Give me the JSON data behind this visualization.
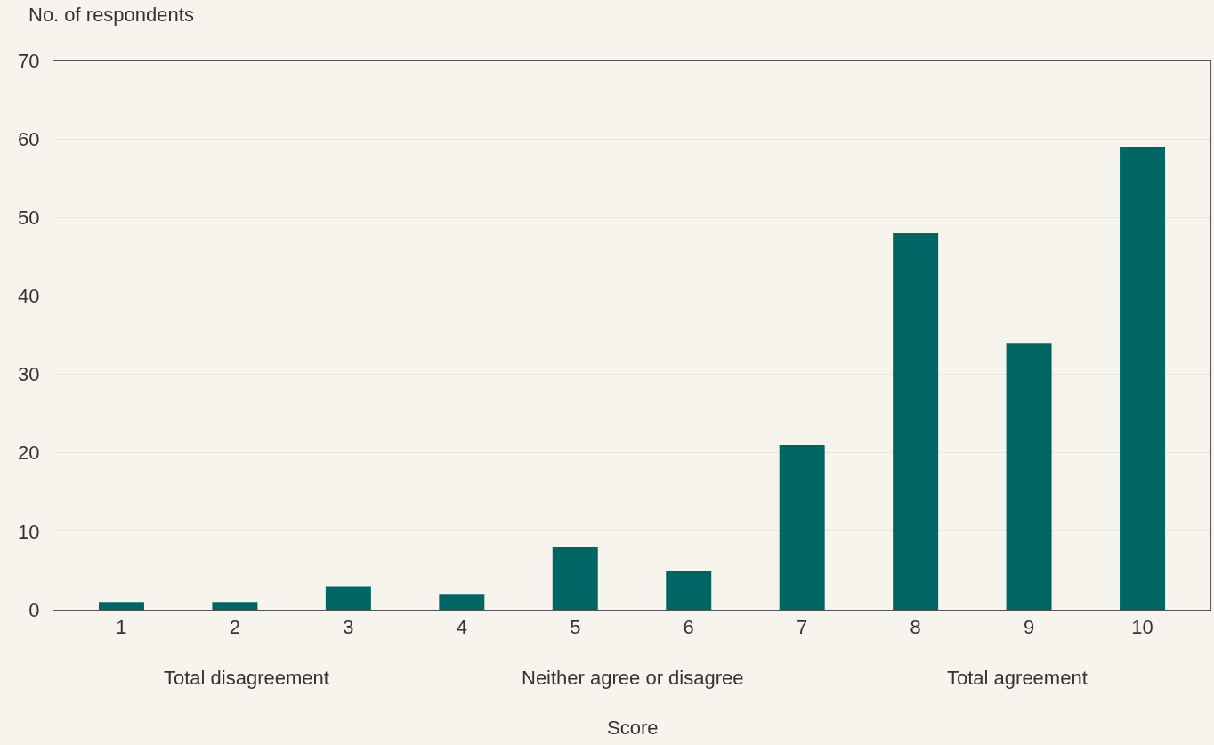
{
  "chart_data": {
    "type": "bar",
    "ylabel": "No. of respondents",
    "xlabel": "Score",
    "categories": [
      "1",
      "2",
      "3",
      "4",
      "5",
      "6",
      "7",
      "8",
      "9",
      "10"
    ],
    "values": [
      1,
      1,
      3,
      2,
      8,
      5,
      21,
      48,
      34,
      59
    ],
    "color": "#006565",
    "ylim": [
      0,
      70
    ],
    "yticks": [
      0,
      10,
      20,
      30,
      40,
      50,
      60,
      70
    ],
    "grid": "y",
    "legend": false,
    "annotations": [
      "Total disagreement",
      "Neither agree or disagree",
      "Total agreement"
    ]
  }
}
